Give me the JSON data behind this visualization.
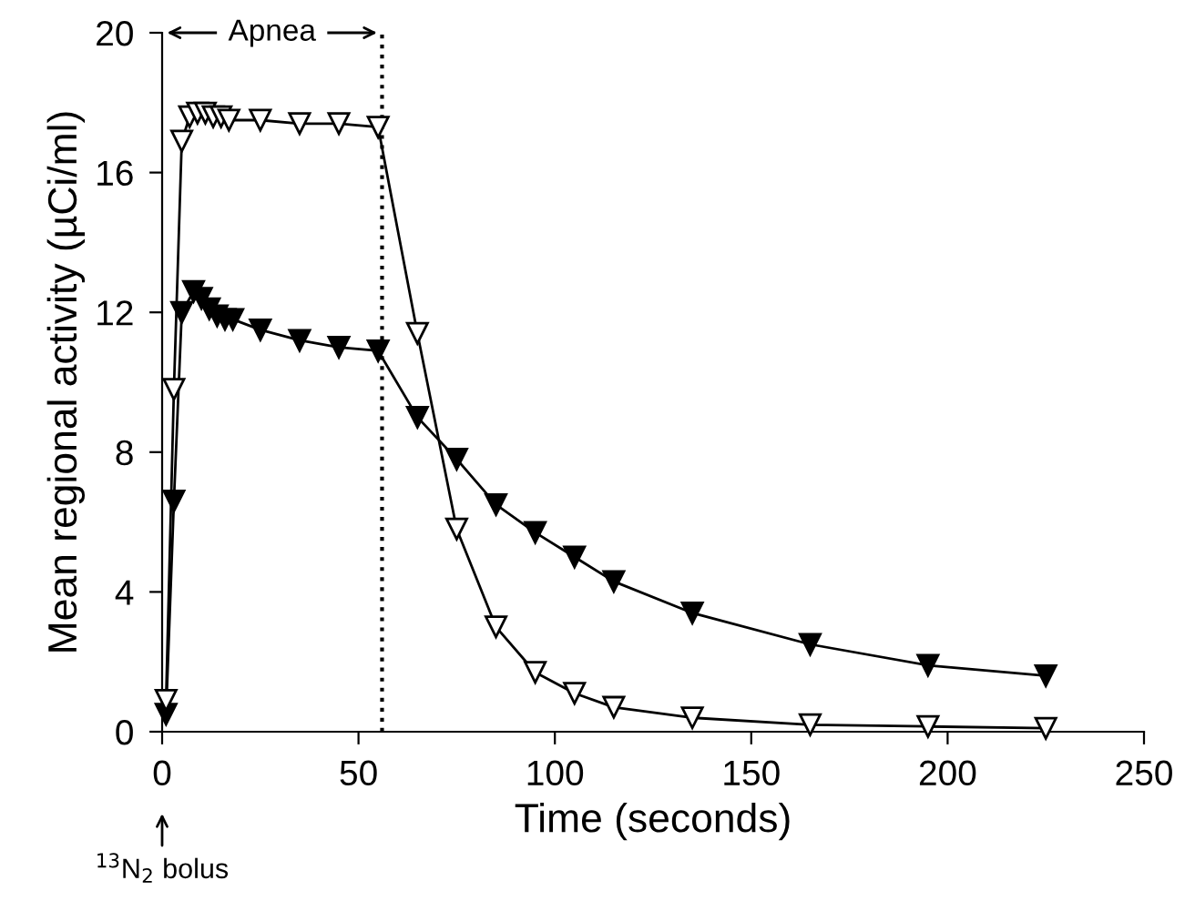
{
  "chart_data": {
    "type": "line",
    "xlabel": "Time (seconds)",
    "ylabel": "Mean regional activity (µCi/ml)",
    "xlim": [
      0,
      250
    ],
    "xticks": [
      0,
      50,
      100,
      150,
      200,
      250
    ],
    "ylim": [
      0,
      20
    ],
    "yticks": [
      0,
      4,
      8,
      12,
      16,
      20
    ],
    "marker": "triangle",
    "line_style": "solid",
    "grid": false,
    "legend": false,
    "series": [
      {
        "color": "#000000",
        "x": [
          1,
          3,
          5,
          8,
          10,
          12,
          14,
          16,
          18,
          25,
          35,
          45,
          55,
          65,
          75,
          85,
          95,
          105,
          115,
          135,
          165,
          195,
          225
        ],
        "values": [
          0.5,
          6.6,
          12.0,
          12.6,
          12.4,
          12.1,
          11.9,
          11.8,
          11.8,
          11.5,
          11.2,
          11.0,
          10.9,
          9.0,
          7.8,
          6.5,
          5.7,
          5.0,
          4.3,
          3.4,
          2.5,
          1.9,
          1.6
        ]
      },
      {
        "color": "#ffffff",
        "x": [
          1,
          3,
          5,
          7,
          9,
          11,
          13,
          15,
          17,
          25,
          35,
          45,
          55,
          65,
          75,
          85,
          95,
          105,
          115,
          135,
          165,
          195,
          225
        ],
        "values": [
          0.9,
          9.8,
          16.9,
          17.6,
          17.7,
          17.7,
          17.6,
          17.6,
          17.5,
          17.5,
          17.4,
          17.4,
          17.3,
          11.4,
          5.8,
          3.0,
          1.7,
          1.1,
          0.7,
          0.4,
          0.2,
          0.15,
          0.1
        ]
      }
    ],
    "ref_lines": [
      {
        "axis": "x",
        "value": 56,
        "line_style": "dotted",
        "color": "#000000"
      }
    ],
    "annotations": [
      "Apnea",
      "$^{13}$N$_{2}$ bolus"
    ]
  }
}
